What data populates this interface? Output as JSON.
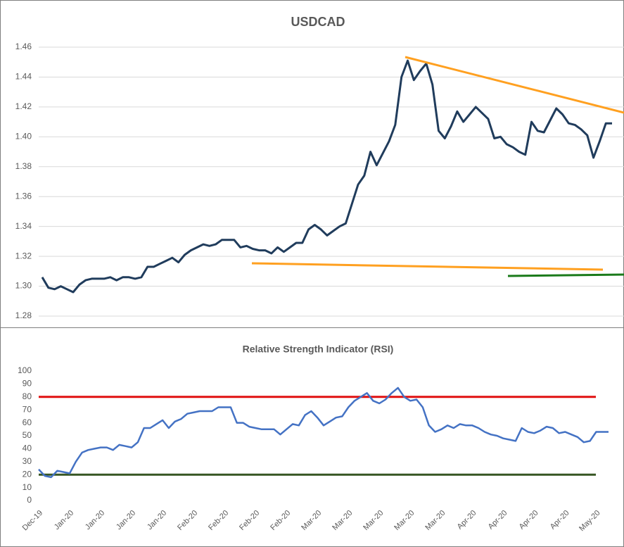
{
  "chart_data": [
    {
      "type": "line",
      "title": "USDCAD",
      "color": "#203c5c",
      "grid": true,
      "values": [
        1.306,
        1.299,
        1.298,
        1.3,
        1.298,
        1.296,
        1.301,
        1.304,
        1.305,
        1.305,
        1.305,
        1.306,
        1.304,
        1.306,
        1.306,
        1.305,
        1.306,
        1.313,
        1.313,
        1.315,
        1.317,
        1.319,
        1.316,
        1.321,
        1.324,
        1.326,
        1.328,
        1.327,
        1.328,
        1.331,
        1.331,
        1.331,
        1.326,
        1.327,
        1.325,
        1.324,
        1.324,
        1.322,
        1.326,
        1.323,
        1.326,
        1.329,
        1.329,
        1.338,
        1.341,
        1.338,
        1.334,
        1.337,
        1.34,
        1.342,
        1.355,
        1.368,
        1.374,
        1.39,
        1.381,
        1.389,
        1.397,
        1.408,
        1.44,
        1.451,
        1.438,
        1.444,
        1.449,
        1.435,
        1.404,
        1.399,
        1.407,
        1.417,
        1.41,
        1.415,
        1.42,
        1.416,
        1.412,
        1.399,
        1.4,
        1.395,
        1.393,
        1.39,
        1.388,
        1.41,
        1.404,
        1.403,
        1.411,
        1.419,
        1.415,
        1.409,
        1.408,
        1.405,
        1.401,
        1.386,
        1.397,
        1.409,
        1.409
      ],
      "ylim": [
        1.28,
        1.46
      ],
      "yticks": [
        1.28,
        {
          "value": 1.3,
          "label": "1.30"
        },
        1.32,
        1.34,
        1.36,
        1.38,
        {
          "value": 1.4,
          "label": "1.40"
        },
        1.42,
        1.44,
        1.46
      ]
    },
    {
      "type": "line",
      "title": "Relative Strength Indicator (RSI)",
      "color": "#4472c4",
      "grid": false,
      "categories": [
        "Dec-19",
        null,
        null,
        null,
        null,
        "Jan-20",
        null,
        null,
        null,
        null,
        "Jan-20",
        null,
        null,
        null,
        null,
        "Jan-20",
        null,
        null,
        null,
        null,
        "Jan-20",
        null,
        null,
        null,
        null,
        "Feb-20",
        null,
        null,
        null,
        null,
        "Feb-20",
        null,
        null,
        null,
        null,
        "Feb-20",
        null,
        null,
        null,
        null,
        "Feb-20",
        null,
        null,
        null,
        null,
        "Mar-20",
        null,
        null,
        null,
        null,
        "Mar-20",
        null,
        null,
        null,
        null,
        "Mar-20",
        null,
        null,
        null,
        null,
        "Mar-20",
        null,
        null,
        null,
        null,
        "Mar-20",
        null,
        null,
        null,
        null,
        "Apr-20",
        null,
        null,
        null,
        null,
        "Apr-20",
        null,
        null,
        null,
        null,
        "Apr-20",
        null,
        null,
        null,
        null,
        "Apr-20",
        null,
        null,
        null,
        null,
        "May-20",
        null,
        null
      ],
      "values": [
        24,
        19,
        18,
        23,
        22,
        21,
        30,
        37,
        39,
        40,
        41,
        41,
        39,
        43,
        42,
        41,
        45,
        56,
        56,
        59,
        62,
        56,
        61,
        63,
        67,
        68,
        69,
        69,
        69,
        72,
        72,
        72,
        60,
        60,
        57,
        56,
        55,
        55,
        55,
        51,
        55,
        59,
        58,
        66,
        69,
        64,
        58,
        61,
        64,
        65,
        72,
        77,
        80,
        83,
        77,
        75,
        78,
        83,
        87,
        80,
        77,
        78,
        72,
        58,
        53,
        55,
        58,
        56,
        59,
        58,
        58,
        56,
        53,
        51,
        50,
        48,
        47,
        46,
        56,
        53,
        52,
        54,
        57,
        56,
        52,
        53,
        51,
        49,
        45,
        46,
        53,
        53,
        53
      ],
      "ylim": [
        0,
        100
      ],
      "yticks": [
        0,
        10,
        20,
        30,
        40,
        50,
        60,
        70,
        80,
        90,
        100
      ],
      "reference_lines": [
        {
          "value": 80,
          "color": "#e01010"
        },
        {
          "value": 20,
          "color": "#375623"
        }
      ]
    }
  ]
}
